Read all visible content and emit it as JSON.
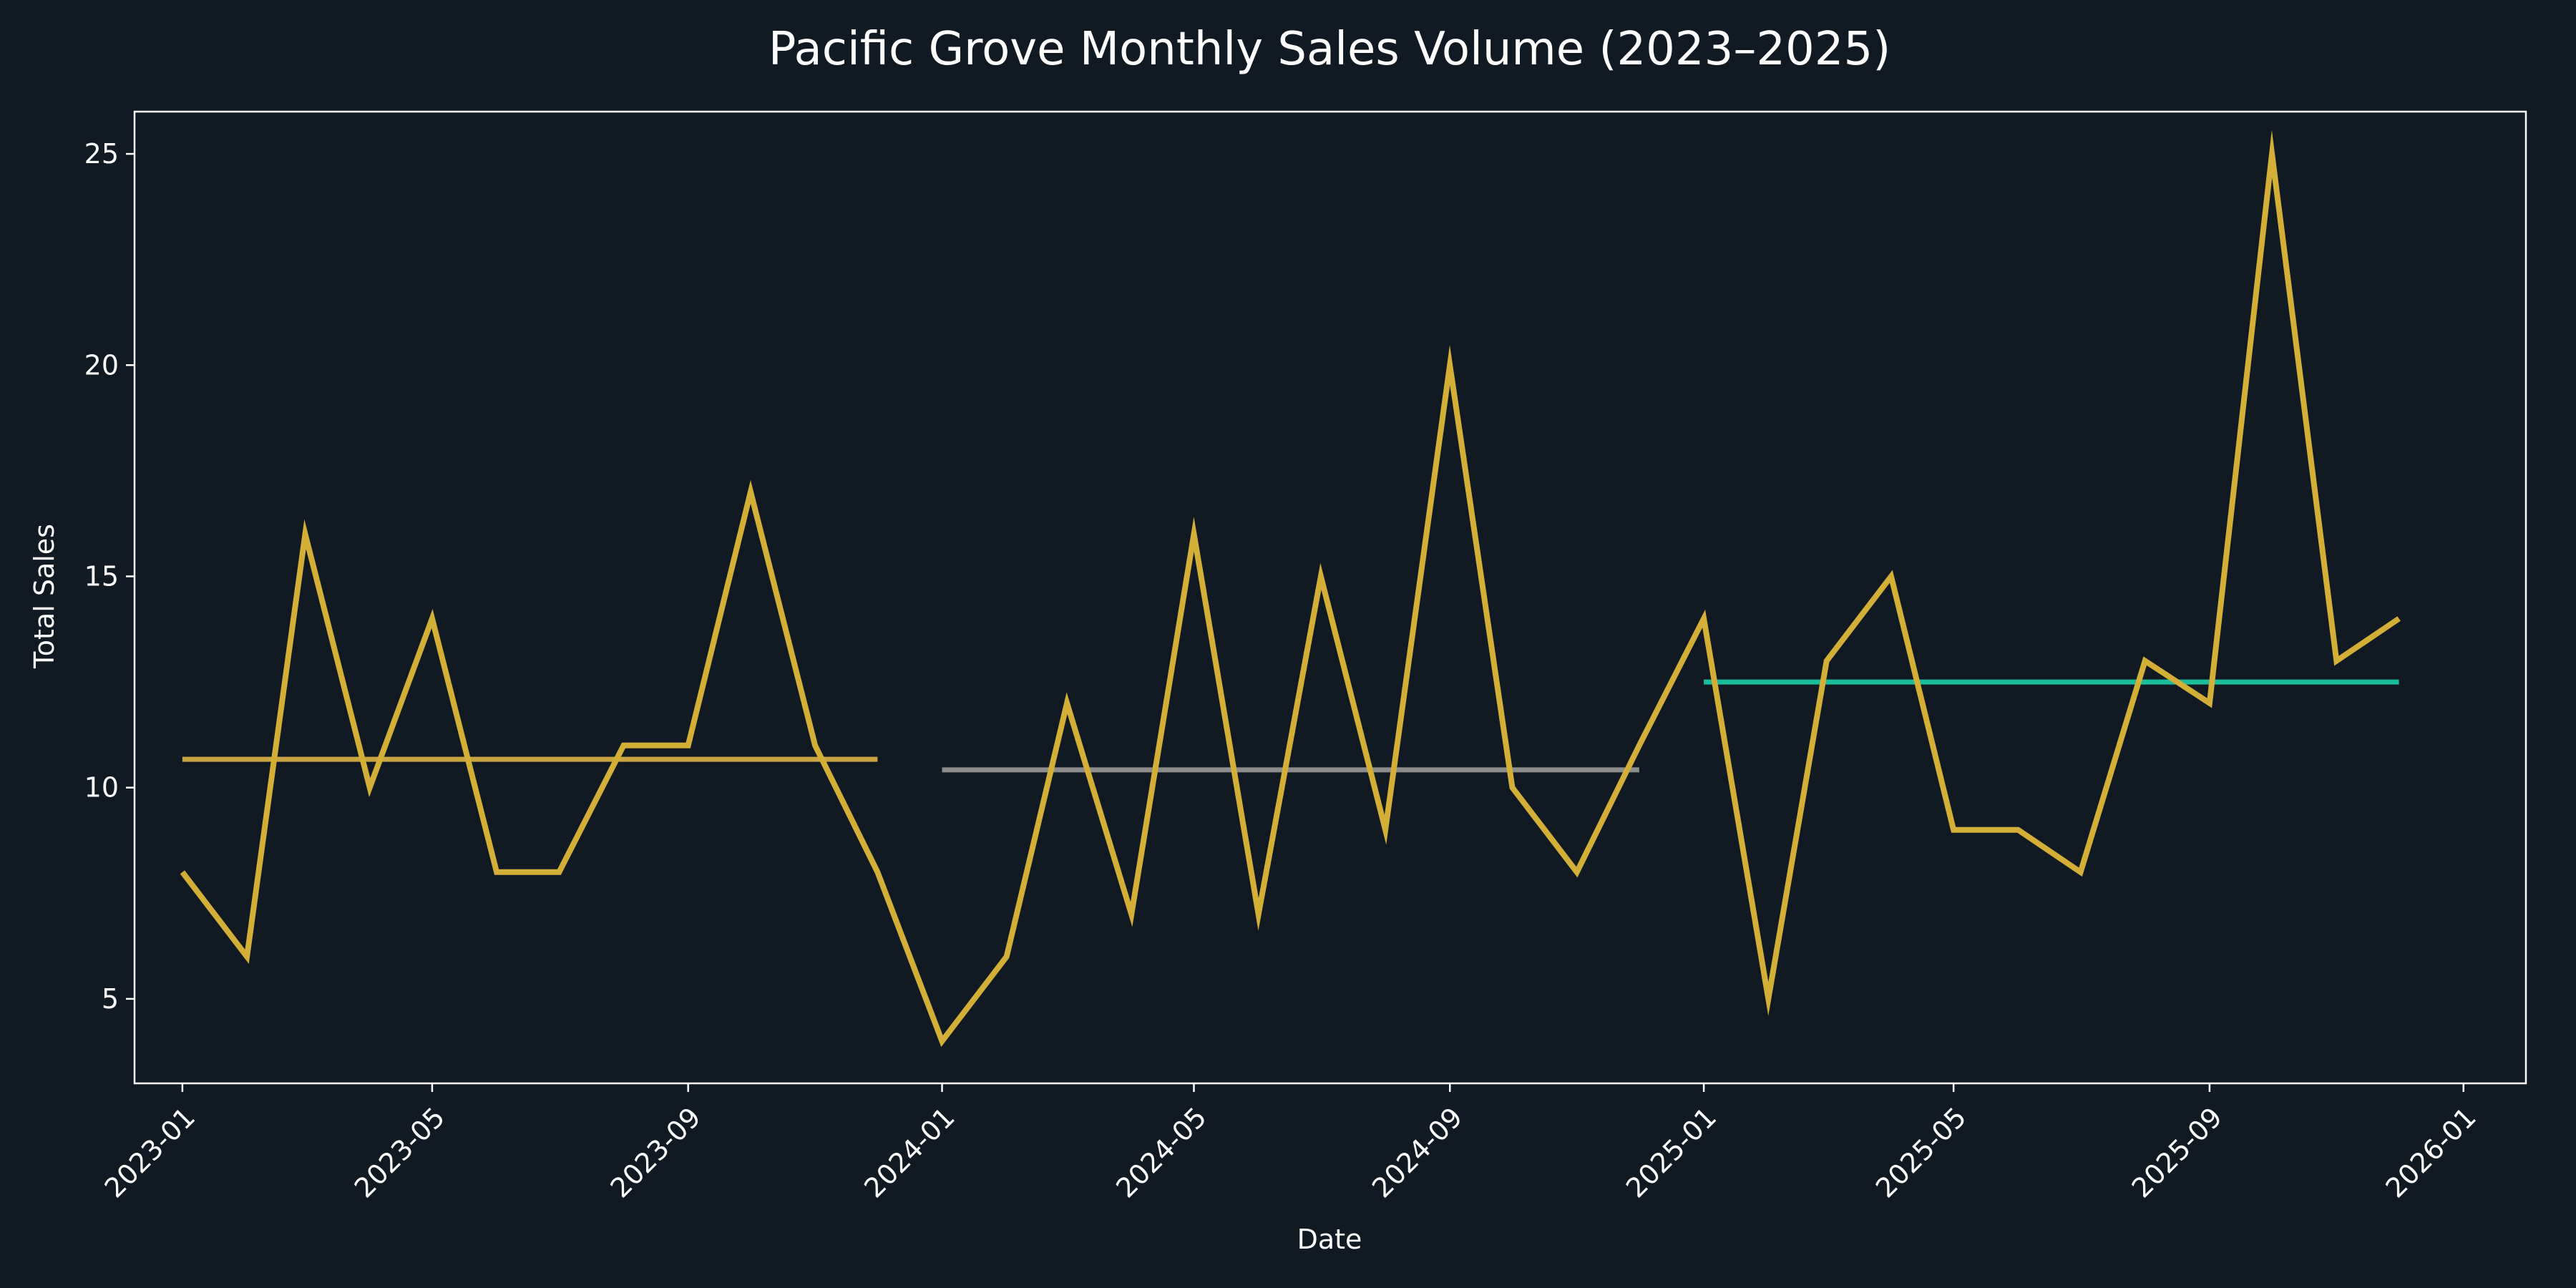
{
  "chart_data": {
    "type": "line",
    "title": "Pacific Grove Monthly Sales Volume (2023–2025)",
    "xlabel": "Date",
    "ylabel": "Total Sales",
    "xlim": [
      "2022-12-09",
      "2026-01-31"
    ],
    "ylim": [
      3.0,
      26.0
    ],
    "y_ticks": [
      5,
      10,
      15,
      20,
      25
    ],
    "x_ticks": [
      "2023-01",
      "2023-05",
      "2023-09",
      "2024-01",
      "2024-05",
      "2024-09",
      "2025-01",
      "2025-05",
      "2025-09",
      "2026-01"
    ],
    "x_tick_dates": [
      "2023-01-01",
      "2023-05-01",
      "2023-09-01",
      "2024-01-01",
      "2024-05-01",
      "2024-09-01",
      "2025-01-01",
      "2025-05-01",
      "2025-09-01",
      "2026-01-01"
    ],
    "grid": false,
    "legend": "none",
    "background_color": "#111a23",
    "series": [
      {
        "color": "#d4af37",
        "x": [
          "2023-01-01",
          "2023-02-01",
          "2023-03-01",
          "2023-04-01",
          "2023-05-01",
          "2023-06-01",
          "2023-07-01",
          "2023-08-01",
          "2023-09-01",
          "2023-10-01",
          "2023-11-01",
          "2023-12-01",
          "2024-01-01",
          "2024-02-01",
          "2024-03-01",
          "2024-04-01",
          "2024-05-01",
          "2024-06-01",
          "2024-07-01",
          "2024-08-01",
          "2024-09-01",
          "2024-10-01",
          "2024-11-01",
          "2024-12-01",
          "2025-01-01",
          "2025-02-01",
          "2025-03-01",
          "2025-04-01",
          "2025-05-01",
          "2025-06-01",
          "2025-07-01",
          "2025-08-01",
          "2025-09-01",
          "2025-10-01",
          "2025-11-01",
          "2025-12-01"
        ],
        "values": [
          8,
          6,
          16,
          10,
          14,
          8,
          8,
          11,
          11,
          17,
          11,
          8,
          4,
          6,
          12,
          7,
          16,
          7,
          15,
          9,
          20,
          10,
          8,
          11,
          14,
          5,
          13,
          15,
          9,
          9,
          8,
          13,
          12,
          25,
          13,
          14
        ]
      }
    ],
    "reference_lines": [
      {
        "color": "#c9a640",
        "x_start": "2023-01-01",
        "x_end": "2023-12-01",
        "value": 10.67
      },
      {
        "color": "#8c8c8c",
        "x_start": "2024-01-01",
        "x_end": "2024-12-01",
        "value": 10.42
      },
      {
        "color": "#1abc9c",
        "x_start": "2025-01-01",
        "x_end": "2025-12-01",
        "value": 12.5
      }
    ]
  }
}
